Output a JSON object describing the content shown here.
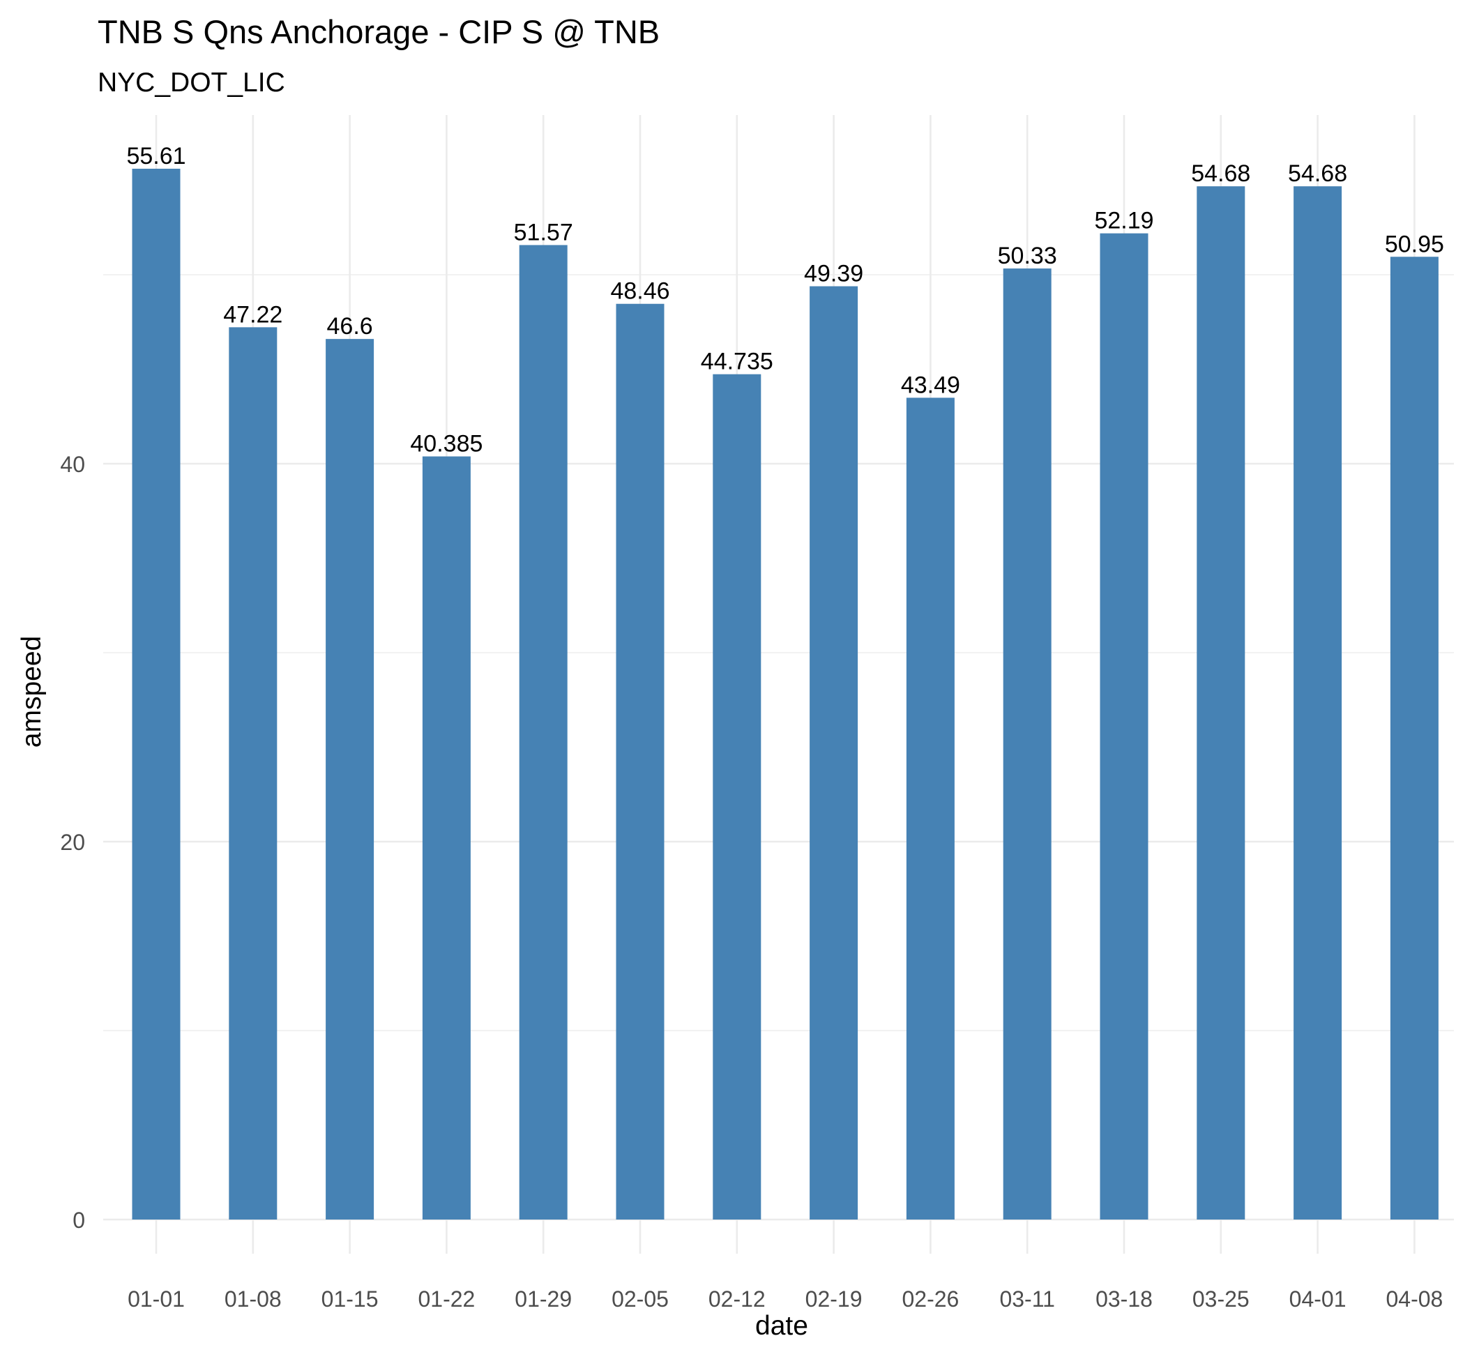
{
  "chart_data": {
    "type": "bar",
    "title": "TNB S Qns Anchorage - CIP S @ TNB",
    "subtitle": "NYC_DOT_LIC",
    "xlabel": "date",
    "ylabel": "amspeed",
    "categories": [
      "01-01",
      "01-08",
      "01-15",
      "01-22",
      "01-29",
      "02-05",
      "02-12",
      "02-19",
      "02-26",
      "03-11",
      "03-18",
      "03-25",
      "04-01",
      "04-08"
    ],
    "values": [
      55.61,
      47.22,
      46.6,
      40.385,
      51.57,
      48.46,
      44.735,
      49.39,
      43.49,
      50.33,
      52.19,
      54.68,
      54.68,
      50.95
    ],
    "value_labels": [
      "55.61",
      "47.22",
      "46.6",
      "40.385",
      "51.57",
      "48.46",
      "44.735",
      "49.39",
      "43.49",
      "50.33",
      "52.19",
      "54.68",
      "54.68",
      "50.95"
    ],
    "y_ticks": [
      0,
      20,
      40
    ],
    "y_tick_labels": [
      "0",
      "20",
      "40"
    ],
    "ylim": [
      0,
      58.4
    ],
    "grid": true,
    "legend": "none",
    "bar_color": "#4682B4",
    "grid_color": "#EBEBEB"
  }
}
